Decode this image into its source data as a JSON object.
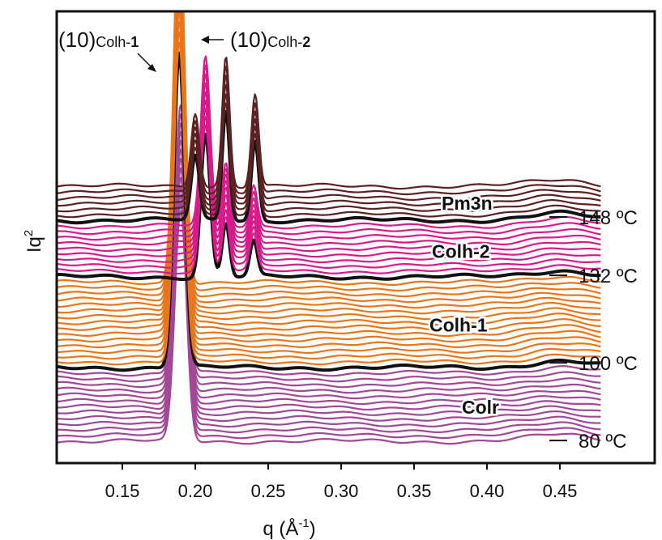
{
  "chart_data": {
    "type": "line",
    "xlabel": "q (Å",
    "xlabel_sup": "-1",
    "xlabel_end": ")",
    "ylabel": "Iq",
    "ylabel_sup": "2",
    "xlim": [
      0.105,
      0.515
    ],
    "x_ticks": [
      0.15,
      0.2,
      0.25,
      0.3,
      0.35,
      0.4,
      0.45
    ],
    "x_tick_labels": [
      "0.15",
      "0.20",
      "0.25",
      "0.30",
      "0.35",
      "0.40",
      "0.45"
    ],
    "q_range": [
      0.105,
      0.478
    ],
    "stack": {
      "description_units": "vertical offset per trace in arbitrary intensity units",
      "n_traces": 46,
      "offset_step": 1.0
    },
    "phases": [
      {
        "name": "Colr",
        "from": 0,
        "to": 12,
        "color": "#a24896",
        "peaks": [
          {
            "q": 0.19,
            "height": 14.5,
            "width": 0.004
          }
        ]
      },
      {
        "name": "Colh-1",
        "from": 13,
        "to": 28,
        "color": "#e8761b",
        "peaks": [
          {
            "q": 0.189,
            "height": 20.0,
            "width": 0.0037
          }
        ]
      },
      {
        "name": "Colh-2",
        "from": 29,
        "to": 38,
        "color": "#d81b8c",
        "peaks": [
          {
            "q": 0.207,
            "height": 9.0,
            "width": 0.0032
          },
          {
            "q": 0.221,
            "height": 3.4,
            "width": 0.0025
          },
          {
            "q": 0.24,
            "height": 2.2,
            "width": 0.0025
          }
        ]
      },
      {
        "name": "Pm3n",
        "from": 39,
        "to": 45,
        "color": "#5a2222",
        "peaks": [
          {
            "q": 0.2,
            "height": 4.0,
            "width": 0.0028
          },
          {
            "q": 0.221,
            "height": 7.0,
            "width": 0.0025
          },
          {
            "q": 0.241,
            "height": 5.0,
            "width": 0.0025
          }
        ]
      }
    ],
    "highlighted_traces": [
      {
        "index": 13,
        "temperature": "100 ºC",
        "color": "#111111"
      },
      {
        "index": 29,
        "temperature": "132 ºC",
        "color": "#111111"
      },
      {
        "index": 39,
        "temperature": "148 ºC",
        "color": "#111111"
      }
    ],
    "temperature_labels": [
      {
        "trace": 0,
        "text": "80 ºC"
      },
      {
        "trace": 13,
        "text": "100 ºC"
      },
      {
        "trace": 29,
        "text": "132 ºC"
      },
      {
        "trace": 39,
        "text": "148 ºC"
      }
    ],
    "phase_labels": [
      {
        "text": "Colr",
        "phase": "Colr"
      },
      {
        "text": "Colh-1",
        "phase": "Colh-1"
      },
      {
        "text": "Colh-2",
        "phase": "Colh-2"
      },
      {
        "text": "Pm3n",
        "phase": "Pm3n"
      }
    ],
    "annotations": [
      {
        "id": "ann1",
        "prefix": "(10)",
        "sub": "Colh-",
        "bold": "1"
      },
      {
        "id": "ann2",
        "prefix": "(10)",
        "sub": "Colh-",
        "bold": "2"
      }
    ],
    "grid": false,
    "legend": "none"
  }
}
